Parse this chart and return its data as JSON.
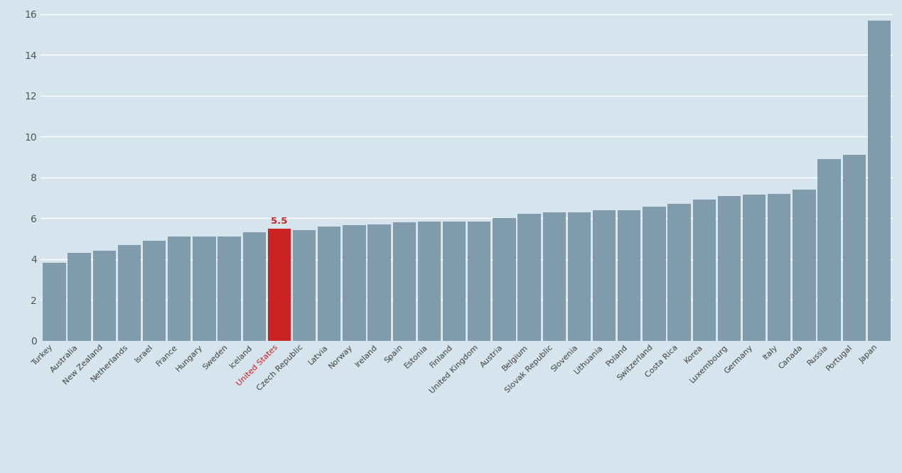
{
  "categories": [
    "Turkey",
    "Australia",
    "New Zealand",
    "Netherlands",
    "Israel",
    "France",
    "Hungary",
    "Sweden",
    "Iceland",
    "United States",
    "Czech Republic",
    "Latvia",
    "Norway",
    "Ireland",
    "Spain",
    "Estonia",
    "Finland",
    "United Kingdom",
    "Austria",
    "Belgium",
    "Slovak Republic",
    "Slovenia",
    "Lithuania",
    "Poland",
    "Switzerland",
    "Costa Rica",
    "Korea",
    "Luxembourg",
    "Germany",
    "Italy",
    "Canada",
    "Russia",
    "Portugal",
    "Japan"
  ],
  "values": [
    3.8,
    4.3,
    4.4,
    4.7,
    4.9,
    5.1,
    5.1,
    5.1,
    5.3,
    5.5,
    5.4,
    5.6,
    5.65,
    5.7,
    5.8,
    5.85,
    5.85,
    5.85,
    6.0,
    6.2,
    6.3,
    6.3,
    6.4,
    6.4,
    6.55,
    6.7,
    6.9,
    7.1,
    7.15,
    7.2,
    7.4,
    8.9,
    9.1,
    15.7
  ],
  "highlight_index": 9,
  "highlight_color": "#cc2222",
  "highlight_label": "5.5",
  "bar_color": "#7f9bac",
  "background_color": "#d6e4ee",
  "ylim": [
    0,
    16
  ],
  "yticks": [
    0,
    2,
    4,
    6,
    8,
    10,
    12,
    14,
    16
  ],
  "figsize": [
    12.69,
    6.66
  ],
  "dpi": 100
}
